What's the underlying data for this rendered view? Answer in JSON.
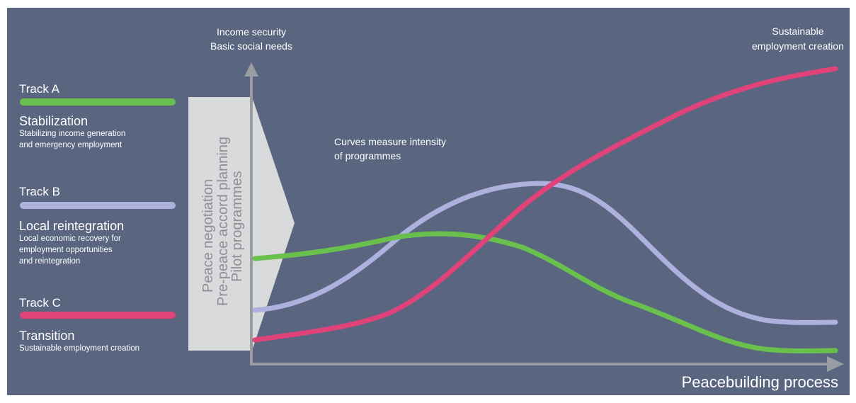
{
  "tracks": [
    {
      "name": "Track A",
      "color": "#6ac04d",
      "title": "Stabilization",
      "desc": [
        "Stabilizing income generation",
        "and emergency employment"
      ]
    },
    {
      "name": "Track B",
      "color": "#aeb0dd",
      "title": "Local reintegration",
      "desc": [
        "Local economic recovery for",
        "employment opportunities",
        "and reintegration"
      ]
    },
    {
      "name": "Track C",
      "color": "#e0427a",
      "title": "Transition",
      "desc": [
        "Sustainable employment creation"
      ]
    }
  ],
  "phase_box": {
    "lines": [
      "Peace negotiation",
      "Pre-peace accord planning",
      "Pilot programmes"
    ],
    "fill": "#d9dadc",
    "text_color": "#8d8f94"
  },
  "axes": {
    "y_label": [
      "Income security",
      "Basic social needs"
    ],
    "x_label": "Peacebuilding process",
    "top_right_label": [
      "Sustainable",
      "employment creation"
    ],
    "note": [
      "Curves measure intensity",
      "of programmes"
    ],
    "axis_color": "#9a9ca3"
  },
  "background": "#5a6580"
}
